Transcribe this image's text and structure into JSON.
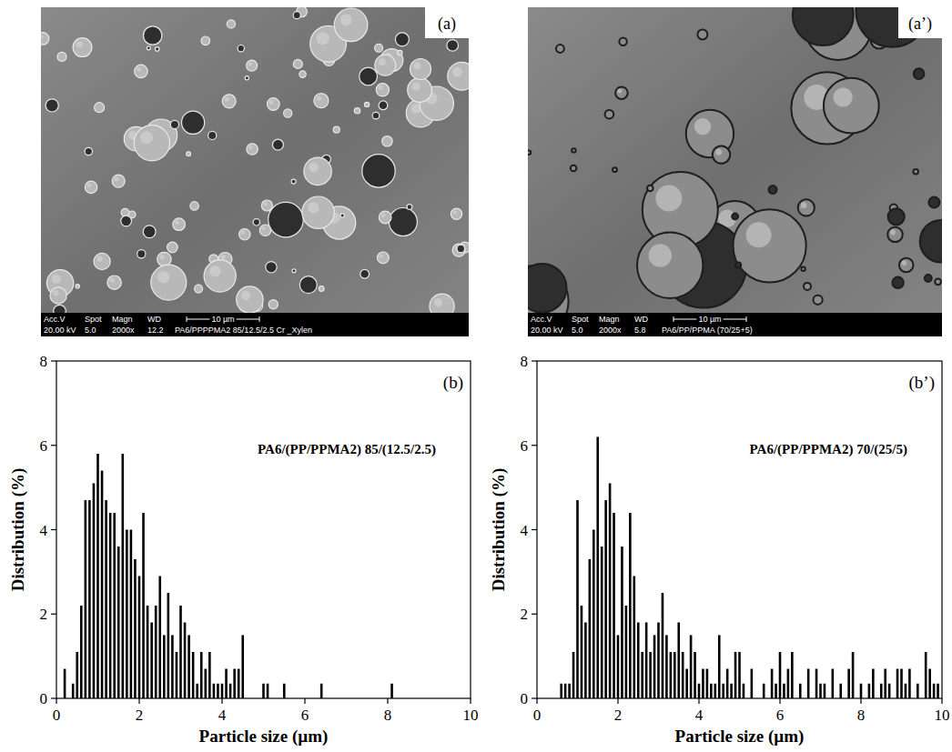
{
  "images": [
    {
      "label": "(a)",
      "fields": [
        {
          "head": "Acc.V",
          "value": "20.00 kV"
        },
        {
          "head": "Spot",
          "value": "5.0"
        },
        {
          "head": "Magn",
          "value": "2000x"
        },
        {
          "head": "WD",
          "value": "12.2"
        }
      ],
      "scale": "10 µm",
      "caption": "PA6/PPPPMA2 85/12.5/2.5 Cr _Xylen"
    },
    {
      "label": "(a’)",
      "fields": [
        {
          "head": "Acc.V",
          "value": "20.00 kV"
        },
        {
          "head": "Spot",
          "value": "5.0"
        },
        {
          "head": "Magn",
          "value": "2000x"
        },
        {
          "head": "WD",
          "value": "5.8"
        }
      ],
      "scale": "10 µm",
      "caption": "PA6/PP/PPMA (70/25+5)"
    }
  ],
  "chart_data": [
    {
      "type": "bar",
      "panel_label": "(b)",
      "annotation": "PA6/(PP/PPMA2) 85/(12.5/2.5)",
      "x_label": "Particle size (µm)",
      "y_label": "Distribution (%)",
      "color": "#000000",
      "xlim": [
        0,
        10
      ],
      "ylim": [
        0,
        8
      ],
      "xticks": [
        0,
        2,
        4,
        6,
        8,
        10
      ],
      "yticks": [
        0,
        2,
        4,
        6,
        8
      ],
      "x": [
        0.2,
        0.4,
        0.5,
        0.6,
        0.7,
        0.8,
        0.9,
        1.0,
        1.1,
        1.2,
        1.3,
        1.4,
        1.5,
        1.6,
        1.7,
        1.8,
        1.9,
        2.0,
        2.1,
        2.2,
        2.3,
        2.4,
        2.5,
        2.6,
        2.7,
        2.8,
        2.9,
        3.0,
        3.1,
        3.2,
        3.3,
        3.4,
        3.5,
        3.6,
        3.7,
        3.8,
        3.9,
        4.0,
        4.1,
        4.2,
        4.3,
        4.4,
        4.5,
        5.0,
        5.1,
        5.5,
        6.4,
        8.1
      ],
      "values": [
        0.7,
        0.35,
        1.1,
        2.2,
        4.7,
        4.7,
        5.1,
        5.8,
        5.4,
        4.7,
        4.4,
        4.4,
        3.6,
        5.8,
        4.0,
        4.0,
        3.3,
        2.9,
        4.4,
        2.2,
        1.8,
        2.2,
        2.9,
        1.5,
        2.5,
        1.5,
        1.1,
        2.2,
        1.8,
        1.5,
        1.1,
        0.35,
        1.1,
        0.7,
        1.1,
        0.35,
        0.35,
        0.35,
        0.7,
        0.35,
        0.7,
        0.7,
        1.5,
        0.35,
        0.35,
        0.35,
        0.35,
        0.35
      ]
    },
    {
      "type": "bar",
      "panel_label": "(b’)",
      "annotation": "PA6/(PP/PPMA2) 70/(25/5)",
      "x_label": "Particle size (µm)",
      "y_label": "Distribution (%)",
      "color": "#000000",
      "xlim": [
        0,
        10
      ],
      "ylim": [
        0,
        8
      ],
      "xticks": [
        0,
        2,
        4,
        6,
        8,
        10
      ],
      "yticks": [
        0,
        2,
        4,
        6,
        8
      ],
      "x": [
        0.6,
        0.7,
        0.8,
        0.9,
        1.0,
        1.1,
        1.2,
        1.3,
        1.4,
        1.5,
        1.6,
        1.7,
        1.8,
        1.9,
        2.0,
        2.1,
        2.2,
        2.3,
        2.4,
        2.5,
        2.6,
        2.7,
        2.8,
        2.9,
        3.0,
        3.1,
        3.2,
        3.3,
        3.4,
        3.5,
        3.6,
        3.7,
        3.8,
        3.9,
        4.0,
        4.1,
        4.2,
        4.3,
        4.4,
        4.5,
        4.6,
        4.7,
        4.8,
        4.9,
        5.0,
        5.1,
        5.3,
        5.6,
        5.8,
        5.9,
        6.0,
        6.1,
        6.2,
        6.3,
        6.5,
        6.7,
        6.9,
        7.0,
        7.1,
        7.3,
        7.5,
        7.7,
        7.8,
        8.0,
        8.2,
        8.3,
        8.5,
        8.6,
        8.7,
        8.9,
        9.0,
        9.1,
        9.2,
        9.4,
        9.6,
        9.7,
        9.8,
        9.9
      ],
      "values": [
        0.35,
        0.35,
        0.35,
        1.1,
        4.7,
        2.2,
        1.8,
        3.3,
        4.0,
        6.2,
        3.6,
        4.7,
        5.1,
        4.4,
        1.5,
        3.6,
        2.2,
        4.4,
        2.9,
        1.8,
        1.1,
        1.8,
        1.1,
        1.5,
        1.8,
        2.5,
        1.5,
        1.1,
        1.1,
        1.8,
        1.1,
        0.7,
        1.5,
        1.1,
        0.35,
        0.7,
        0.7,
        0.35,
        0.35,
        1.5,
        0.35,
        0.7,
        0.35,
        1.1,
        1.1,
        0.35,
        0.7,
        0.35,
        0.7,
        0.35,
        1.1,
        0.35,
        0.7,
        1.1,
        0.35,
        0.7,
        0.7,
        0.35,
        0.35,
        0.7,
        0.35,
        0.7,
        1.1,
        0.35,
        0.35,
        0.7,
        0.35,
        0.7,
        0.35,
        0.7,
        0.7,
        0.35,
        0.7,
        0.35,
        1.1,
        0.7,
        0.35,
        0.35
      ]
    }
  ]
}
